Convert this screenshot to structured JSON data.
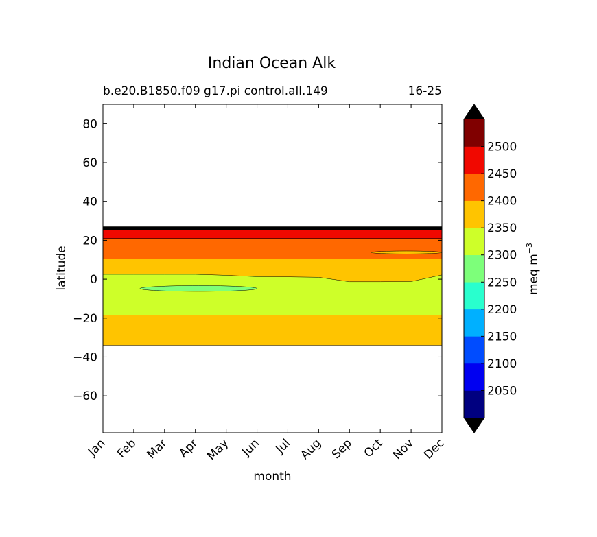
{
  "chart_data": {
    "type": "contourf",
    "title": "Indian Ocean Alk",
    "subtitle_left": "b.e20.B1850.f09 g17.pi control.all.149",
    "subtitle_right": "16-25",
    "xlabel": "month",
    "ylabel": "latitude",
    "x_ticks": [
      "Jan",
      "Feb",
      "Mar",
      "Apr",
      "May",
      "Jun",
      "Jul",
      "Aug",
      "Sep",
      "Oct",
      "Nov",
      "Dec"
    ],
    "xlim": [
      0,
      11
    ],
    "ylim": [
      -79,
      90
    ],
    "y_ticks": [
      80,
      60,
      40,
      20,
      0,
      -20,
      -40,
      -60
    ],
    "y_tick_labels": [
      "80",
      "60",
      "40",
      "20",
      "0",
      "−20",
      "−40",
      "−60"
    ],
    "colorbar": {
      "label": "meq m",
      "label_exponent": "−3",
      "levels": [
        2000,
        2050,
        2100,
        2150,
        2200,
        2250,
        2300,
        2350,
        2400,
        2450,
        2500,
        2550
      ],
      "tick_labels": [
        "2050",
        "2100",
        "2150",
        "2200",
        "2250",
        "2300",
        "2350",
        "2400",
        "2450",
        "2500"
      ],
      "colors": [
        "#000080",
        "#0000f1",
        "#004cff",
        "#00b0ff",
        "#29ffce",
        "#7dff7a",
        "#ceff29",
        "#ffc400",
        "#ff6800",
        "#f10800",
        "#800000"
      ],
      "extend_low_color": "#000000",
      "extend_high_color": "#000000"
    },
    "bands": [
      {
        "range": "2350-2400",
        "color": "#ffc400",
        "boundary_south_lat": -34,
        "boundary_north_lat": 27
      },
      {
        "range": "2300-2350",
        "color": "#ceff29",
        "boundary_south_lat": -18.5,
        "boundary_north_lat": [
          2.5,
          2.5,
          2.5,
          2.5,
          2.0,
          1.3,
          1.2,
          1.0,
          -1.3,
          -1.3,
          -1.2,
          2.2
        ]
      },
      {
        "range": "2400-2450",
        "color": "#ff6800",
        "boundary_south_lat": 10.5,
        "boundary_north_lat": 21
      },
      {
        "range": "2450-2500",
        "color": "#f10800",
        "boundary_south_lat": 21,
        "boundary_north_lat": 25.5
      },
      {
        "range": ">2550",
        "color": "#000000",
        "boundary_south_lat": 25.5,
        "boundary_north_lat": 27
      }
    ],
    "patches": [
      {
        "range": "2250-2300",
        "color": "#7dff7a",
        "month_range": [
          1.2,
          5.0
        ],
        "lat_range": [
          -6.3,
          -3.3
        ]
      },
      {
        "range": "2350-2400",
        "color": "#ffc400",
        "month_range": [
          8.7,
          11.0
        ],
        "lat_range": [
          13.0,
          14.5
        ]
      }
    ]
  }
}
